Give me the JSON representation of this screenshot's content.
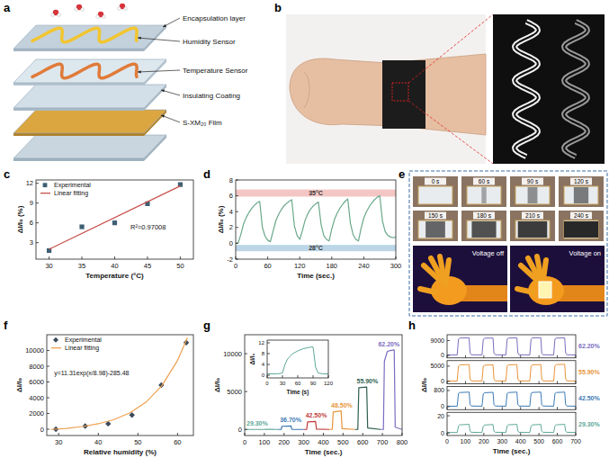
{
  "figures": {
    "a": {
      "panel": "a",
      "labels": [
        "Encapsulation layer",
        "Humidity Sensor",
        "Temperature Sensor",
        "Insulating Coating",
        "S-XM₂₀ Film"
      ]
    },
    "b": {
      "panel": "b"
    },
    "e": {
      "panel": "e",
      "frames": [
        "0 s",
        "60 s",
        "90 s",
        "120 s",
        "150 s",
        "180 s",
        "210 s",
        "240 s"
      ],
      "thermal": [
        "Voltage off",
        "Voltage on"
      ]
    }
  },
  "chart_data": [
    {
      "type": "scatter",
      "panel": "c",
      "xlabel": "Temperature (°C)",
      "ylabel": "ΔI/I₀ (%)",
      "xlim": [
        28,
        52
      ],
      "xticks": [
        30,
        35,
        40,
        45,
        50
      ],
      "ylim": [
        0.5,
        12.5
      ],
      "yticks": [
        3,
        6,
        9,
        12
      ],
      "legend": "upper left",
      "annotations": [
        {
          "text": "R²=0.97008"
        }
      ],
      "series": [
        {
          "name": "Experimental",
          "type": "scatter",
          "marker": "square",
          "color": "#3e5f73",
          "x": [
            30,
            35,
            40,
            45,
            50
          ],
          "values": [
            1.8,
            5.4,
            6.0,
            8.9,
            11.8
          ]
        },
        {
          "name": "Linear fitting",
          "type": "line",
          "line_style": "solid",
          "color": "#c8504a",
          "x": [
            30,
            50
          ],
          "values": [
            2.0,
            11.6
          ]
        }
      ]
    },
    {
      "type": "line",
      "panel": "d",
      "xlabel": "Time (sec.)",
      "ylabel": "ΔI/I₀ (%)",
      "xlim": [
        0,
        300
      ],
      "xticks": [
        0,
        60,
        120,
        180,
        240,
        300
      ],
      "ylim": [
        -2,
        8
      ],
      "yticks": [
        -2,
        0,
        2,
        4,
        6,
        8
      ],
      "color": "#6aa88a",
      "x": [
        0,
        5,
        10,
        15,
        20,
        25,
        30,
        35,
        40,
        45,
        50,
        55,
        60,
        65,
        70,
        75,
        80,
        85,
        90,
        95,
        100,
        105,
        110,
        115,
        120,
        125,
        130,
        135,
        140,
        145,
        150,
        155,
        160,
        165,
        170,
        175,
        180,
        185,
        190,
        195,
        200,
        205,
        210,
        215,
        220,
        225,
        230,
        235,
        240,
        245,
        250,
        255,
        260,
        265,
        270,
        275,
        280,
        285,
        290,
        295,
        300
      ],
      "values": [
        0,
        0.1,
        1.2,
        2.5,
        3.3,
        3.9,
        4.4,
        4.8,
        5.1,
        5.3,
        2.0,
        0.9,
        0.4,
        0.2,
        1.5,
        2.8,
        3.6,
        4.2,
        4.7,
        5.0,
        5.3,
        5.5,
        2.2,
        1.0,
        0.5,
        1.6,
        2.9,
        3.7,
        4.3,
        4.7,
        5.0,
        5.2,
        2.4,
        1.0,
        0.5,
        0.3,
        1.8,
        3.0,
        3.8,
        4.4,
        4.9,
        5.3,
        5.6,
        2.5,
        1.1,
        0.5,
        0.3,
        1.9,
        3.2,
        4.0,
        4.6,
        5.1,
        5.5,
        5.8,
        6.0,
        2.8,
        1.5,
        1.0,
        0.8,
        0.7,
        0.8
      ],
      "bands": [
        {
          "label": "35°C",
          "y": [
            5.9,
            6.8
          ],
          "color": "#f3c6c4"
        },
        {
          "label": "28°C",
          "y": [
            -1.0,
            -0.2
          ],
          "color": "#bcd6e8"
        }
      ]
    },
    {
      "type": "scatter",
      "panel": "f",
      "xlabel": "Relative humidity (%)",
      "ylabel": "ΔI/I₀",
      "xlim": [
        27,
        64
      ],
      "xticks": [
        30,
        40,
        50,
        60
      ],
      "ylim": [
        -800,
        12000
      ],
      "yticks": [
        0,
        2000,
        4000,
        6000,
        8000,
        10000
      ],
      "legend": "upper left",
      "annotations": [
        {
          "text": "y=11.31exp(x/8.98)-285.48"
        }
      ],
      "series": [
        {
          "name": "Experimental",
          "type": "scatter",
          "marker": "diamond",
          "color": "#3b4a5a",
          "x": [
            29.3,
            36.7,
            42.5,
            48.5,
            55.9,
            62.2
          ],
          "values": [
            0,
            400,
            700,
            1800,
            5600,
            11000
          ]
        },
        {
          "name": "Linear fitting",
          "type": "line",
          "line_style": "solid",
          "color": "#f0a050",
          "x": [
            28,
            32,
            36,
            40,
            44,
            48,
            52,
            56,
            60,
            62.5
          ],
          "values": [
            -30,
            110,
            340,
            690,
            1230,
            2090,
            3420,
            5500,
            8730,
            11640
          ]
        }
      ]
    },
    {
      "type": "line",
      "panel": "g",
      "xlabel": "Time (sec.)",
      "ylabel": "ΔI/I₀",
      "xlim": [
        0,
        800
      ],
      "xticks": [
        0,
        100,
        200,
        300,
        400,
        500,
        600,
        700,
        800
      ],
      "ylim": [
        -800,
        12500
      ],
      "yticks": [
        0,
        5000,
        10000
      ],
      "series": [
        {
          "name": "29.30%",
          "color": "#5fa898",
          "x": [
            0,
            100,
            105,
            145,
            150,
            170
          ],
          "values": [
            0,
            0,
            10,
            12,
            0,
            0
          ]
        },
        {
          "name": "36.70%",
          "color": "#3d7ab5",
          "x": [
            170,
            185,
            190,
            235,
            240,
            300
          ],
          "values": [
            0,
            0,
            420,
            450,
            20,
            0
          ]
        },
        {
          "name": "42.50%",
          "color": "#c23b3b",
          "x": [
            300,
            315,
            320,
            360,
            365,
            430
          ],
          "values": [
            0,
            0,
            1000,
            1050,
            50,
            0
          ]
        },
        {
          "name": "48.50%",
          "color": "#e8943a",
          "x": [
            430,
            445,
            450,
            490,
            495,
            560
          ],
          "values": [
            0,
            0,
            2300,
            2450,
            100,
            0
          ]
        },
        {
          "name": "55.90%",
          "color": "#2e5e4e",
          "x": [
            560,
            575,
            580,
            620,
            625,
            690
          ],
          "values": [
            0,
            0,
            5500,
            5600,
            200,
            0
          ]
        },
        {
          "name": "62.20%",
          "color": "#7b6cc0",
          "x": [
            690,
            705,
            710,
            725,
            740,
            760,
            765,
            800
          ],
          "values": [
            0,
            0,
            9000,
            10300,
            10400,
            10500,
            300,
            0
          ]
        }
      ],
      "inset": {
        "type": "line",
        "xlabel": "Time (s)",
        "ylabel": "ΔI/I₀",
        "xlim": [
          0,
          120
        ],
        "xticks": [
          0,
          30,
          60,
          90,
          120
        ],
        "ylim": [
          -1,
          13
        ],
        "yticks": [
          0,
          4,
          8,
          12
        ],
        "color": "#5fa898",
        "x": [
          0,
          20,
          30,
          35,
          40,
          50,
          60,
          70,
          80,
          85,
          90,
          95,
          100,
          110,
          120
        ],
        "values": [
          0.5,
          0.5,
          0.8,
          4,
          6,
          8,
          9,
          9.8,
          10.2,
          10.4,
          10.5,
          3,
          0.8,
          0.5,
          0.5
        ]
      }
    },
    {
      "type": "line",
      "panel": "h",
      "xlabel": "Time (sec.)",
      "ylabel": "ΔI/I₀",
      "xlim": [
        0,
        700
      ],
      "xticks": [
        0,
        100,
        200,
        300,
        400,
        500,
        600,
        700
      ],
      "series": [
        {
          "name": "62.20%",
          "color": "#7b6cc0",
          "ylim": [
            -1500,
            12500
          ],
          "yticks": [
            0,
            9000
          ],
          "x": [
            0,
            55,
            62,
            70,
            120,
            125,
            132,
            190,
            197,
            205,
            250,
            255,
            262,
            320,
            327,
            335,
            380,
            385,
            392,
            450,
            457,
            465,
            510,
            515,
            522,
            580,
            587,
            595,
            640,
            645,
            652,
            700
          ],
          "values": [
            300,
            300,
            9800,
            10500,
            10600,
            1500,
            400,
            300,
            9700,
            10400,
            10500,
            1400,
            400,
            300,
            9900,
            10500,
            10600,
            1500,
            400,
            300,
            9800,
            10600,
            10700,
            1500,
            400,
            300,
            9900,
            10500,
            10600,
            1500,
            400,
            300
          ]
        },
        {
          "name": "55.90%",
          "color": "#e8943a",
          "ylim": [
            -800,
            6800
          ],
          "yticks": [
            0,
            5000
          ],
          "x": [
            0,
            55,
            62,
            70,
            120,
            125,
            132,
            190,
            197,
            205,
            250,
            255,
            262,
            320,
            327,
            335,
            380,
            385,
            392,
            450,
            457,
            465,
            510,
            515,
            522,
            580,
            587,
            595,
            640,
            645,
            652,
            700
          ],
          "values": [
            100,
            100,
            5000,
            5400,
            5500,
            800,
            150,
            100,
            5000,
            5300,
            5400,
            800,
            150,
            100,
            5100,
            5400,
            5500,
            800,
            150,
            100,
            5000,
            5400,
            5500,
            800,
            150,
            100,
            5100,
            5500,
            5600,
            800,
            150,
            100
          ]
        },
        {
          "name": "42.50%",
          "color": "#3d7ab5",
          "ylim": [
            -150,
            1000
          ],
          "yticks": [
            0,
            800
          ],
          "x": [
            0,
            55,
            62,
            70,
            120,
            125,
            132,
            190,
            197,
            205,
            250,
            255,
            262,
            320,
            327,
            335,
            380,
            385,
            392,
            450,
            457,
            465,
            510,
            515,
            522,
            580,
            587,
            595,
            640,
            645,
            652,
            700
          ],
          "values": [
            20,
            20,
            650,
            700,
            720,
            100,
            30,
            20,
            640,
            690,
            710,
            100,
            30,
            20,
            650,
            700,
            720,
            100,
            30,
            20,
            660,
            705,
            720,
            100,
            30,
            20,
            650,
            700,
            720,
            100,
            30,
            20
          ]
        },
        {
          "name": "29.30%",
          "color": "#5fa898",
          "ylim": [
            -3,
            24
          ],
          "yticks": [
            0,
            20
          ],
          "x": [
            0,
            55,
            62,
            70,
            120,
            125,
            132,
            190,
            197,
            205,
            250,
            255,
            262,
            320,
            327,
            335,
            380,
            385,
            392,
            450,
            457,
            465,
            510,
            515,
            522,
            580,
            587,
            595,
            640,
            645,
            652,
            700
          ],
          "values": [
            0.5,
            0.5,
            8,
            9.5,
            10,
            2,
            0.8,
            0.5,
            8,
            9.3,
            9.8,
            2,
            0.8,
            0.5,
            8.2,
            9.5,
            10,
            2,
            0.8,
            0.5,
            8,
            9.4,
            9.9,
            2,
            0.8,
            0.5,
            8.1,
            9.5,
            10,
            2,
            0.8,
            0.5
          ]
        }
      ]
    }
  ]
}
